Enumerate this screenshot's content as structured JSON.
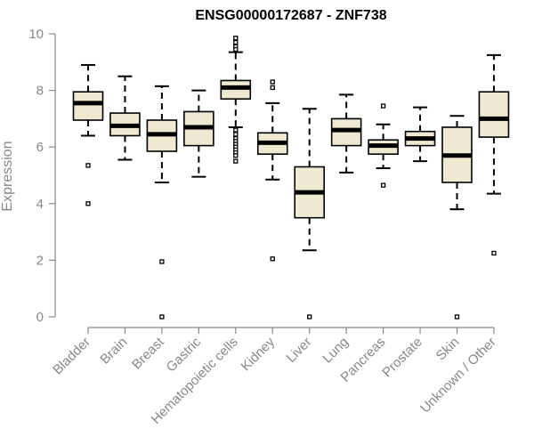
{
  "chart_data": {
    "type": "box",
    "title": "ENSG00000172687 - ZNF738",
    "xlabel": "",
    "ylabel": "Expression",
    "ylim": [
      0,
      10
    ],
    "yticks": [
      0,
      2,
      4,
      6,
      8,
      10
    ],
    "categories": [
      "Bladder",
      "Brain",
      "Breast",
      "Gastric",
      "Hematopoietic cells",
      "Kidney",
      "Liver",
      "Lung",
      "Pancreas",
      "Prostate",
      "Skin",
      "Unknown / Other"
    ],
    "boxes": [
      {
        "category": "Bladder",
        "whisker_low": 6.4,
        "q1": 6.95,
        "median": 7.55,
        "q3": 7.95,
        "whisker_high": 8.9,
        "outliers": [
          5.35,
          4.0
        ]
      },
      {
        "category": "Brain",
        "whisker_low": 5.55,
        "q1": 6.4,
        "median": 6.75,
        "q3": 7.2,
        "whisker_high": 8.5,
        "outliers": []
      },
      {
        "category": "Breast",
        "whisker_low": 4.75,
        "q1": 5.85,
        "median": 6.45,
        "q3": 6.95,
        "whisker_high": 8.15,
        "outliers": [
          1.95,
          0.0
        ]
      },
      {
        "category": "Gastric",
        "whisker_low": 4.95,
        "q1": 6.05,
        "median": 6.7,
        "q3": 7.25,
        "whisker_high": 8.0,
        "outliers": []
      },
      {
        "category": "Hematopoietic cells",
        "whisker_low": 6.7,
        "q1": 7.7,
        "median": 8.1,
        "q3": 8.35,
        "whisker_high": 9.35,
        "outliers": [
          9.85,
          9.7,
          9.55,
          9.45,
          6.6,
          6.45,
          6.3,
          6.2,
          6.1,
          6.0,
          5.9,
          5.8,
          5.7,
          5.5
        ]
      },
      {
        "category": "Kidney",
        "whisker_low": 4.85,
        "q1": 5.75,
        "median": 6.15,
        "q3": 6.5,
        "whisker_high": 7.55,
        "outliers": [
          8.3,
          8.1,
          2.05
        ]
      },
      {
        "category": "Liver",
        "whisker_low": 2.35,
        "q1": 3.5,
        "median": 4.4,
        "q3": 5.3,
        "whisker_high": 7.35,
        "outliers": [
          0.0
        ]
      },
      {
        "category": "Lung",
        "whisker_low": 5.1,
        "q1": 6.05,
        "median": 6.6,
        "q3": 7.0,
        "whisker_high": 7.85,
        "outliers": []
      },
      {
        "category": "Pancreas",
        "whisker_low": 5.25,
        "q1": 5.75,
        "median": 6.05,
        "q3": 6.25,
        "whisker_high": 6.8,
        "outliers": [
          7.45,
          4.65
        ]
      },
      {
        "category": "Prostate",
        "whisker_low": 5.5,
        "q1": 6.05,
        "median": 6.3,
        "q3": 6.55,
        "whisker_high": 7.4,
        "outliers": []
      },
      {
        "category": "Skin",
        "whisker_low": 3.8,
        "q1": 4.75,
        "median": 5.7,
        "q3": 6.7,
        "whisker_high": 7.1,
        "outliers": [
          0.0
        ]
      },
      {
        "category": "Unknown / Other",
        "whisker_low": 4.35,
        "q1": 6.35,
        "median": 7.0,
        "q3": 7.95,
        "whisker_high": 9.25,
        "outliers": [
          2.25
        ]
      }
    ],
    "box_fill": "#efe9d2",
    "box_stroke": "#000000",
    "median_color": "#000000",
    "axis_color": "#888888",
    "grid": false
  }
}
